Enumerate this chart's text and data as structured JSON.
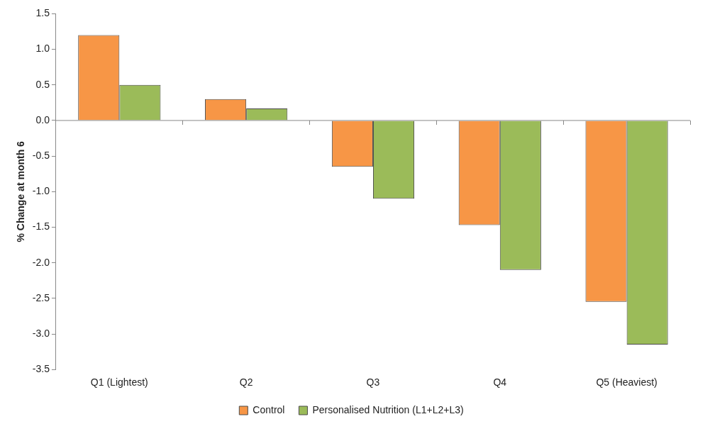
{
  "chart_data": {
    "type": "bar",
    "ylabel": "% Change at month 6",
    "categories": [
      "Q1 (Lightest)",
      "Q2",
      "Q3",
      "Q4",
      "Q5 (Heaviest)"
    ],
    "series": [
      {
        "name": "Control",
        "color": "#f79646",
        "values": [
          1.2,
          0.3,
          -0.65,
          -1.47,
          -2.55
        ]
      },
      {
        "name": "Personalised Nutrition (L1+L2+L3)",
        "color": "#9bbb59",
        "values": [
          0.5,
          0.17,
          -1.1,
          -2.1,
          -3.15
        ]
      }
    ],
    "ylim": [
      -3.5,
      1.5
    ],
    "yticks": [
      1.5,
      {
        "value": 1,
        "label": "1.0"
      },
      0.5,
      {
        "value": 0,
        "label": "0.0"
      },
      -0.5,
      {
        "value": -1,
        "label": "-1.0"
      },
      -1.5,
      {
        "value": -2,
        "label": "-2.0"
      },
      -2.5,
      {
        "value": -3,
        "label": "-3.0"
      },
      -3.5
    ],
    "ref_lines": [
      {
        "axis": "y",
        "value": 0,
        "color": "#888888"
      }
    ],
    "grid": false,
    "legend": "bottom"
  }
}
